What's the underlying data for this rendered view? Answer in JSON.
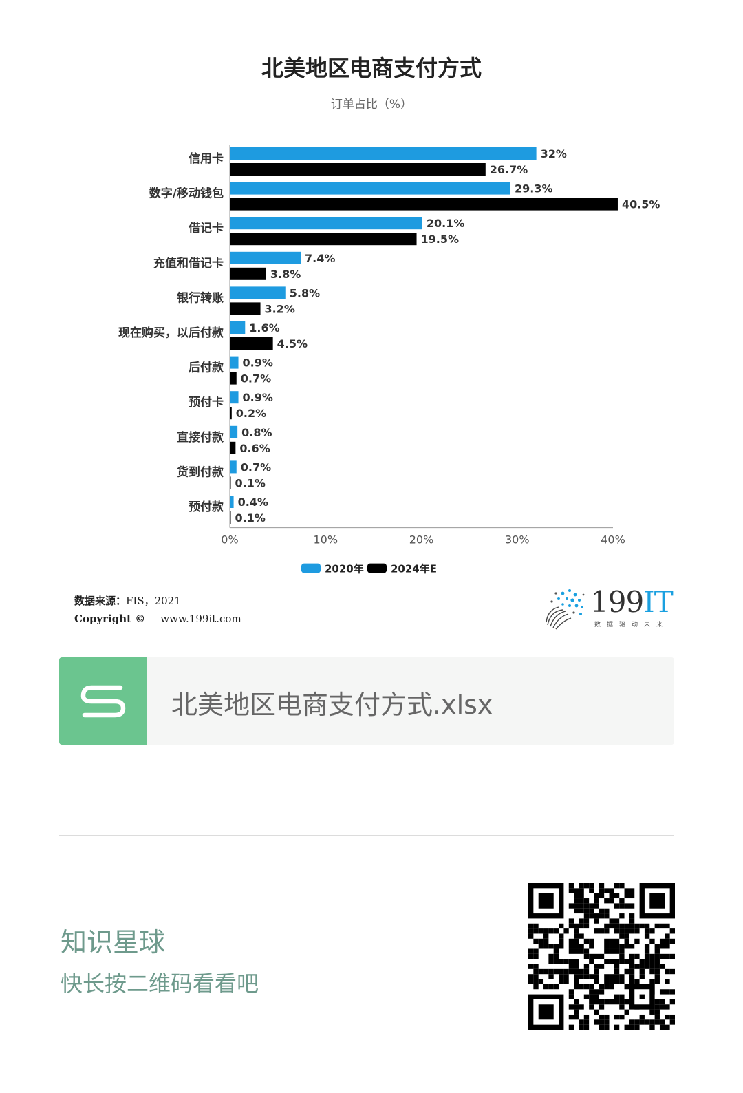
{
  "chart_data": {
    "type": "bar",
    "orientation": "horizontal",
    "title": "北美地区电商支付方式",
    "subtitle": "订单占比（%）",
    "categories": [
      "信用卡",
      "数字/移动钱包",
      "借记卡",
      "充值和借记卡",
      "银行转账",
      "现在购买，以后付款",
      "后付款",
      "预付卡",
      "直接付款",
      "货到付款",
      "预付款"
    ],
    "series": [
      {
        "name": "2020年",
        "color": "#1e9be0",
        "values": [
          32,
          29.3,
          20.1,
          7.4,
          5.8,
          1.6,
          0.9,
          0.9,
          0.8,
          0.7,
          0.4
        ],
        "labels": [
          "32%",
          "29.3%",
          "20.1%",
          "7.4%",
          "5.8%",
          "1.6%",
          "0.9%",
          "0.9%",
          "0.8%",
          "0.7%",
          "0.4%"
        ]
      },
      {
        "name": "2024年E",
        "color": "#000000",
        "values": [
          26.7,
          40.5,
          19.5,
          3.8,
          3.2,
          4.5,
          0.7,
          0.2,
          0.6,
          0.1,
          0.1
        ],
        "labels": [
          "26.7%",
          "40.5%",
          "19.5%",
          "3.8%",
          "3.2%",
          "4.5%",
          "0.7%",
          "0.2%",
          "0.6%",
          "0.1%",
          "0.1%"
        ]
      }
    ],
    "xlim": [
      0,
      40
    ],
    "x_ticks": [
      "0%",
      "10%",
      "20%",
      "30%",
      "40%"
    ],
    "grid": false,
    "legend_position": "bottom"
  },
  "footer": {
    "source_label": "数据来源：",
    "source_value": "FIS，2021",
    "copyright_label": "Copyright ©",
    "copyright_url": "www.199it.com"
  },
  "logo": {
    "number": "199",
    "letters": "IT",
    "tagline": "数据驱动未来"
  },
  "file_card": {
    "icon": "spreadsheet-s-icon",
    "filename": "北美地区电商支付方式.xlsx"
  },
  "brand": {
    "name": "知识星球",
    "subtitle": "快长按二维码看看吧"
  }
}
